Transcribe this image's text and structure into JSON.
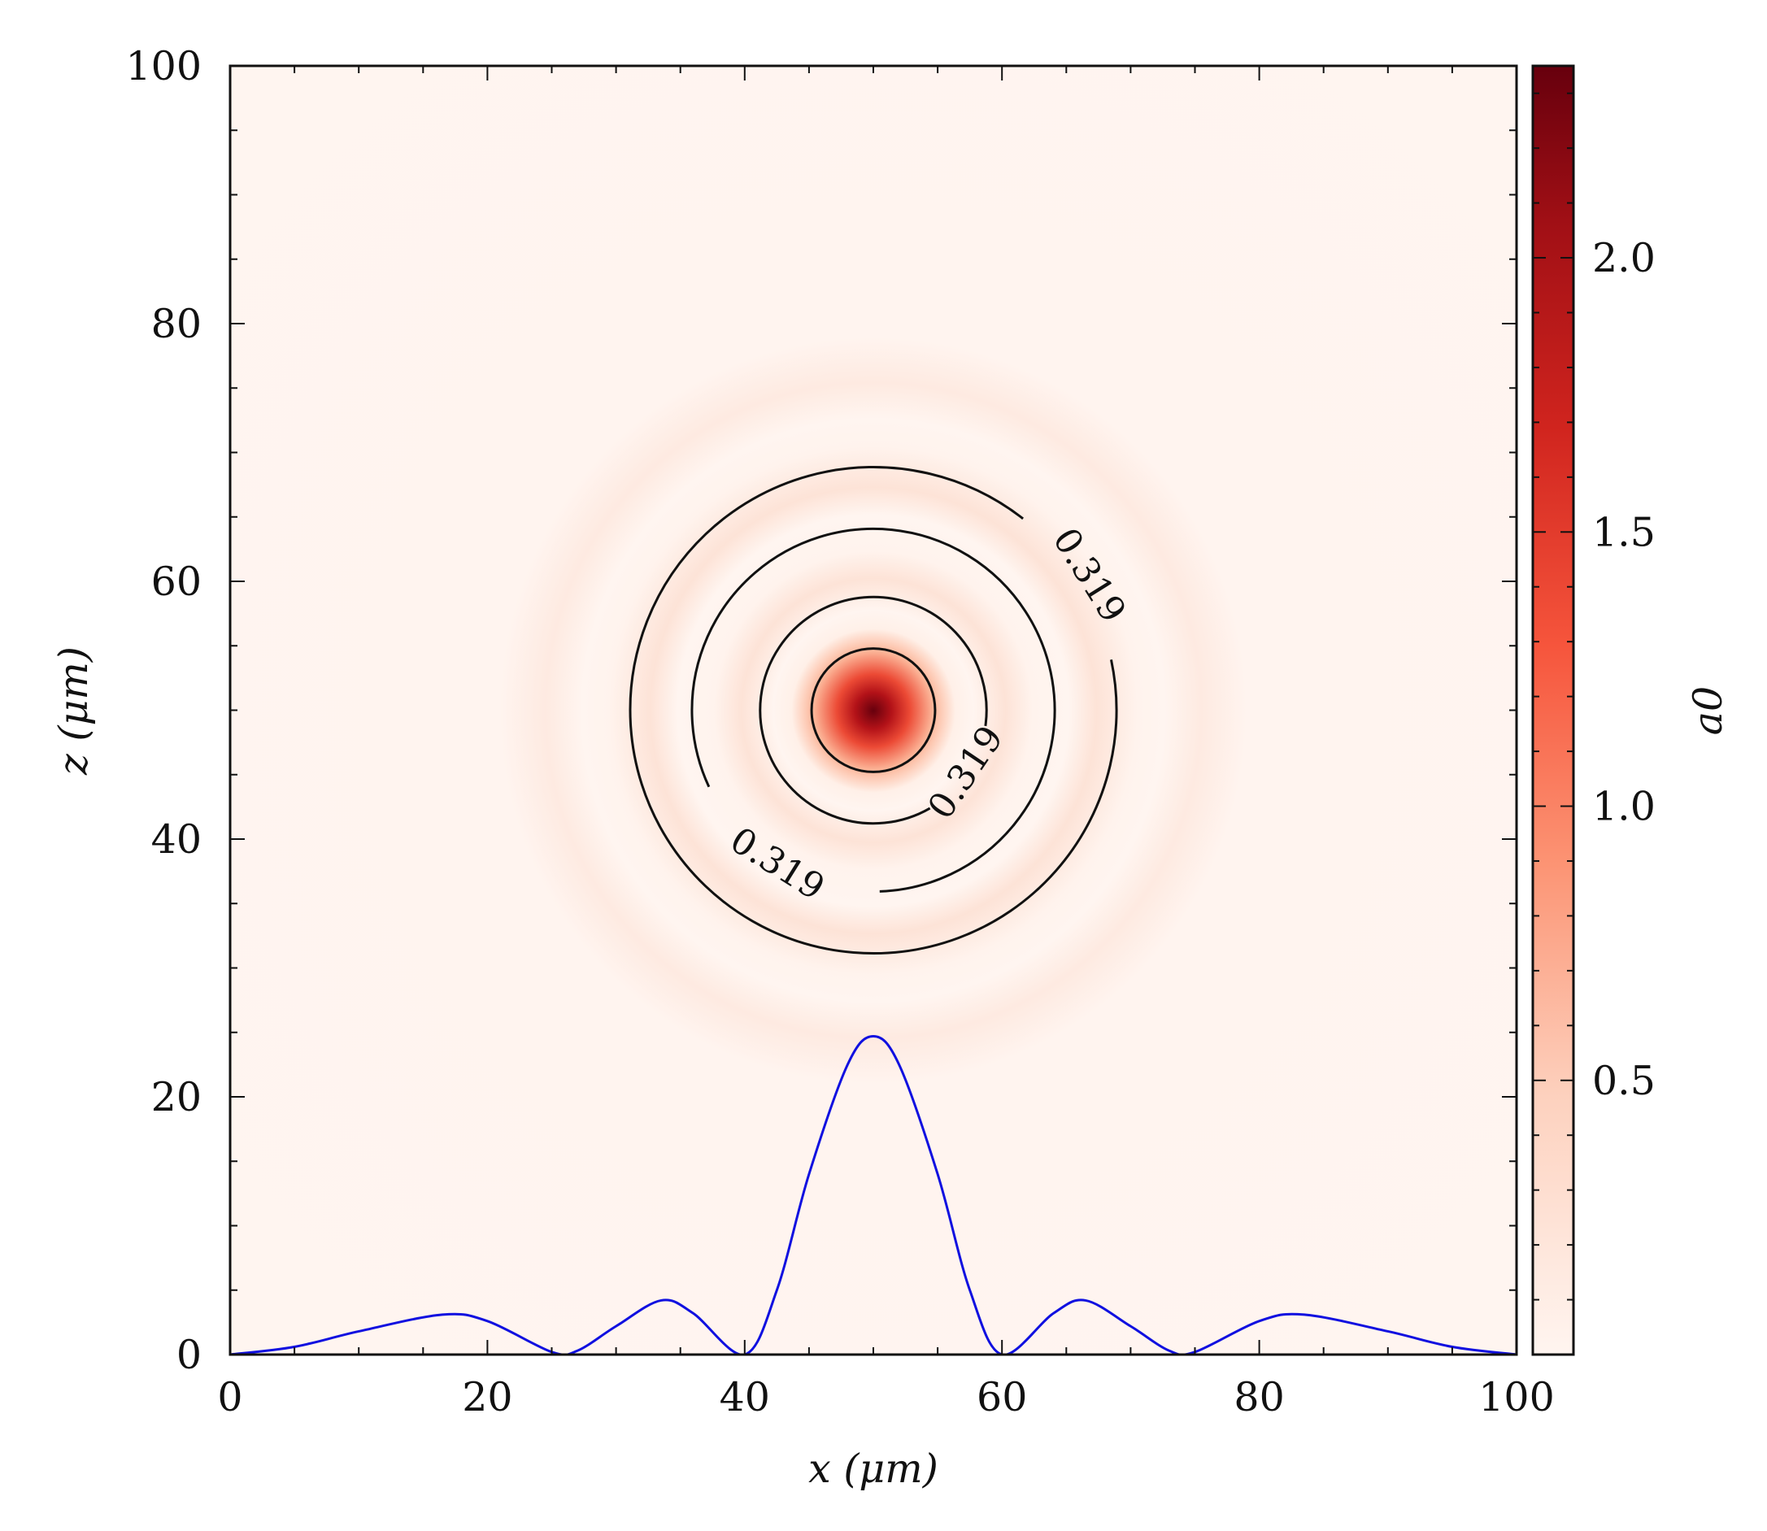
{
  "chart_data": {
    "type": "heatmap",
    "title": "",
    "xlabel": "x (μm)",
    "ylabel": "z (μm)",
    "xlim": [
      0,
      100
    ],
    "ylim": [
      0,
      100
    ],
    "x_ticks": [
      0,
      20,
      40,
      60,
      80,
      100
    ],
    "y_ticks": [
      0,
      20,
      40,
      60,
      80,
      100
    ],
    "xtick_labels": [
      "0",
      "20",
      "40",
      "60",
      "80",
      "100"
    ],
    "ytick_labels": [
      "0",
      "20",
      "40",
      "60",
      "80",
      "100"
    ],
    "grid": false,
    "colormap": "Reds",
    "colorbar": {
      "label": "a0",
      "range": [
        0.0,
        2.35
      ],
      "ticks": [
        0.5,
        1.0,
        1.5,
        2.0
      ],
      "tick_labels": [
        "0.5",
        "1.0",
        "1.5",
        "2.0"
      ]
    },
    "field": {
      "description_of_pattern": "radially symmetric Airy-like intensity",
      "center": [
        50,
        50
      ],
      "peak_value": 2.35,
      "central_lobe_radius": 5,
      "ring_radii": [
        21,
        38
      ],
      "ring_peak_values": [
        0.25,
        0.18
      ]
    },
    "contours": {
      "level": 0.319,
      "level_label": "0.319",
      "radii": [
        4.8,
        8.8,
        14.1,
        18.9
      ]
    },
    "profile_line": {
      "color": "#1010e0",
      "points": [
        [
          0,
          0
        ],
        [
          5,
          0.6
        ],
        [
          10,
          1.8
        ],
        [
          16.5,
          3.1
        ],
        [
          20,
          2.6
        ],
        [
          25,
          0.2
        ],
        [
          27,
          0.3
        ],
        [
          30,
          2.2
        ],
        [
          33.5,
          4.2
        ],
        [
          36,
          3.2
        ],
        [
          40,
          0
        ],
        [
          42.5,
          5
        ],
        [
          45,
          14
        ],
        [
          48,
          22.5
        ],
        [
          50,
          24.7
        ],
        [
          52,
          22.5
        ],
        [
          55,
          14
        ],
        [
          57.5,
          5
        ],
        [
          60,
          0
        ],
        [
          64,
          3.2
        ],
        [
          66.5,
          4.2
        ],
        [
          70,
          2.2
        ],
        [
          73,
          0.3
        ],
        [
          75,
          0.2
        ],
        [
          80,
          2.6
        ],
        [
          83.5,
          3.1
        ],
        [
          90,
          1.8
        ],
        [
          95,
          0.6
        ],
        [
          100,
          0
        ]
      ]
    }
  }
}
